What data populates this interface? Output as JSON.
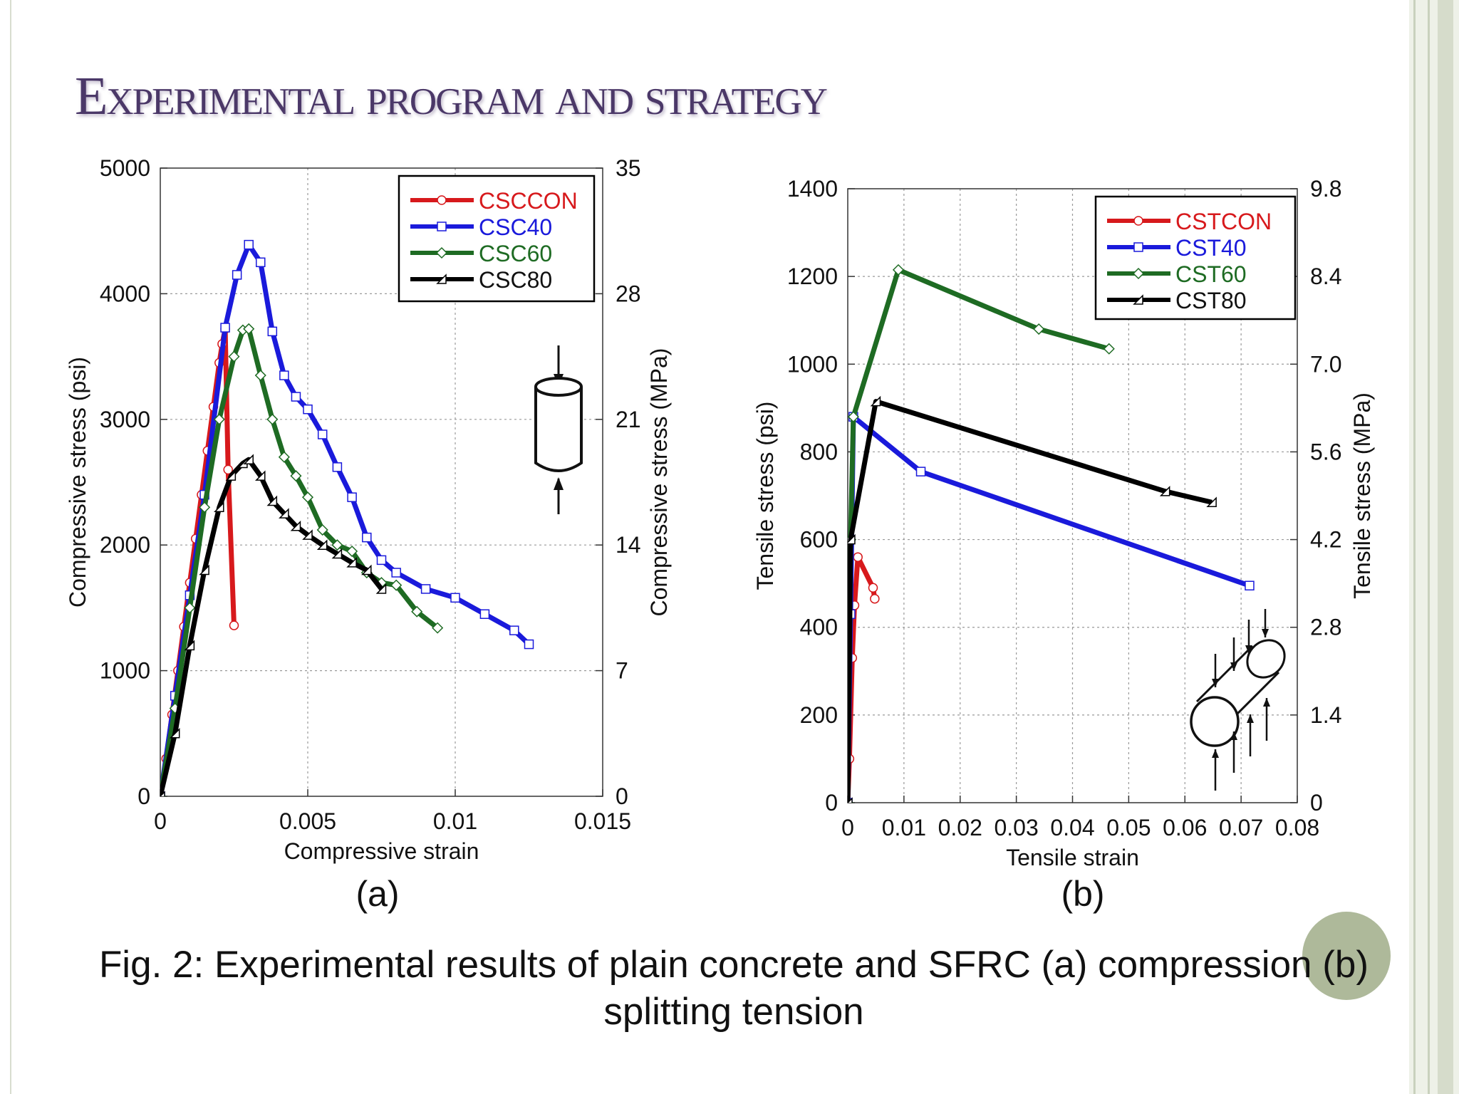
{
  "slide": {
    "title": "Experimental program and strategy"
  },
  "caption": {
    "line1": "Fig. 2: Experimental results of plain concrete and SFRC (a) compression (b)",
    "line2": "splitting tension"
  },
  "chart_data": [
    {
      "type": "line",
      "panel_label": "(a)",
      "xlabel": "Compressive strain",
      "ylabel": "Compressive stress (psi)",
      "y2label": "Compressive stress (MPa)",
      "xlim": [
        0,
        0.015
      ],
      "ylim": [
        0,
        5000
      ],
      "y2lim": [
        0,
        35
      ],
      "xticks": [
        "0",
        "0.005",
        "0.01",
        "0.015"
      ],
      "yticks": [
        "0",
        "1000",
        "2000",
        "3000",
        "4000",
        "5000"
      ],
      "y2ticks": [
        "0",
        "7",
        "14",
        "21",
        "28",
        "35"
      ],
      "grid": true,
      "legend_position": "top-right",
      "series": [
        {
          "name": "CSCCON",
          "color": "#d7191c",
          "marker": "circle",
          "x": [
            0,
            0.0002,
            0.0004,
            0.0006,
            0.0008,
            0.001,
            0.0012,
            0.0014,
            0.0016,
            0.0018,
            0.002,
            0.0021,
            0.0022,
            0.0023,
            0.0025
          ],
          "y": [
            0,
            300,
            650,
            1000,
            1350,
            1700,
            2050,
            2400,
            2750,
            3100,
            3450,
            3600,
            3720,
            2600,
            1360
          ]
        },
        {
          "name": "CSC40",
          "color": "#1a1adb",
          "marker": "square",
          "x": [
            0,
            0.0005,
            0.001,
            0.0015,
            0.0022,
            0.0026,
            0.003,
            0.0034,
            0.0038,
            0.0042,
            0.0046,
            0.005,
            0.0055,
            0.006,
            0.0065,
            0.007,
            0.0075,
            0.008,
            0.009,
            0.01,
            0.011,
            0.012,
            0.0125
          ],
          "y": [
            0,
            800,
            1600,
            2400,
            3730,
            4150,
            4390,
            4250,
            3700,
            3350,
            3180,
            3080,
            2880,
            2620,
            2380,
            2060,
            1880,
            1780,
            1650,
            1580,
            1450,
            1320,
            1210
          ]
        },
        {
          "name": "CSC60",
          "color": "#1e6b23",
          "marker": "diamond",
          "x": [
            0,
            0.0005,
            0.001,
            0.0015,
            0.002,
            0.0025,
            0.0028,
            0.003,
            0.0034,
            0.0038,
            0.0042,
            0.0046,
            0.005,
            0.0055,
            0.006,
            0.0065,
            0.007,
            0.0075,
            0.008,
            0.0087,
            0.0094
          ],
          "y": [
            0,
            700,
            1500,
            2300,
            3000,
            3500,
            3710,
            3720,
            3350,
            3000,
            2700,
            2550,
            2380,
            2120,
            2000,
            1950,
            1780,
            1700,
            1680,
            1470,
            1340
          ]
        },
        {
          "name": "CSC80",
          "color": "#000000",
          "marker": "triangle",
          "x": [
            0,
            0.0005,
            0.001,
            0.0015,
            0.002,
            0.0024,
            0.0028,
            0.003,
            0.0034,
            0.0038,
            0.0042,
            0.0046,
            0.005,
            0.0055,
            0.006,
            0.0065,
            0.007,
            0.0075
          ],
          "y": [
            0,
            500,
            1200,
            1800,
            2300,
            2550,
            2650,
            2680,
            2550,
            2350,
            2250,
            2150,
            2080,
            2000,
            1930,
            1860,
            1800,
            1650
          ]
        }
      ]
    },
    {
      "type": "line",
      "panel_label": "(b)",
      "xlabel": "Tensile strain",
      "ylabel": "Tensile stress (psi)",
      "y2label": "Tensile stress (MPa)",
      "xlim": [
        0,
        0.08
      ],
      "ylim": [
        0,
        1400
      ],
      "y2lim": [
        0,
        9.8
      ],
      "xticks": [
        "0",
        "0.01",
        "0.02",
        "0.03",
        "0.04",
        "0.05",
        "0.06",
        "0.07",
        "0.08"
      ],
      "yticks": [
        "0",
        "200",
        "400",
        "600",
        "800",
        "1000",
        "1200",
        "1400"
      ],
      "y2ticks": [
        "0",
        "1.4",
        "2.8",
        "4.2",
        "5.6",
        "7.0",
        "8.4",
        "9.8"
      ],
      "grid": true,
      "legend_position": "top-right",
      "series": [
        {
          "name": "CSTCON",
          "color": "#d7191c",
          "marker": "circle",
          "x": [
            0,
            0.0003,
            0.0008,
            0.0012,
            0.0018,
            0.0045,
            0.0048
          ],
          "y": [
            0,
            100,
            330,
            450,
            560,
            490,
            465
          ]
        },
        {
          "name": "CST40",
          "color": "#1a1adb",
          "marker": "square",
          "x": [
            0,
            0.0005,
            0.001,
            0.013,
            0.0715
          ],
          "y": [
            0,
            430,
            880,
            755,
            495
          ]
        },
        {
          "name": "CST60",
          "color": "#1e6b23",
          "marker": "diamond",
          "x": [
            0,
            0.0005,
            0.001,
            0.009,
            0.034,
            0.0465
          ],
          "y": [
            0,
            600,
            880,
            1215,
            1080,
            1035
          ]
        },
        {
          "name": "CST80",
          "color": "#000000",
          "marker": "triangle",
          "x": [
            0,
            0.0005,
            0.005,
            0.0565,
            0.0648
          ],
          "y": [
            0,
            600,
            915,
            710,
            685
          ]
        }
      ]
    }
  ]
}
